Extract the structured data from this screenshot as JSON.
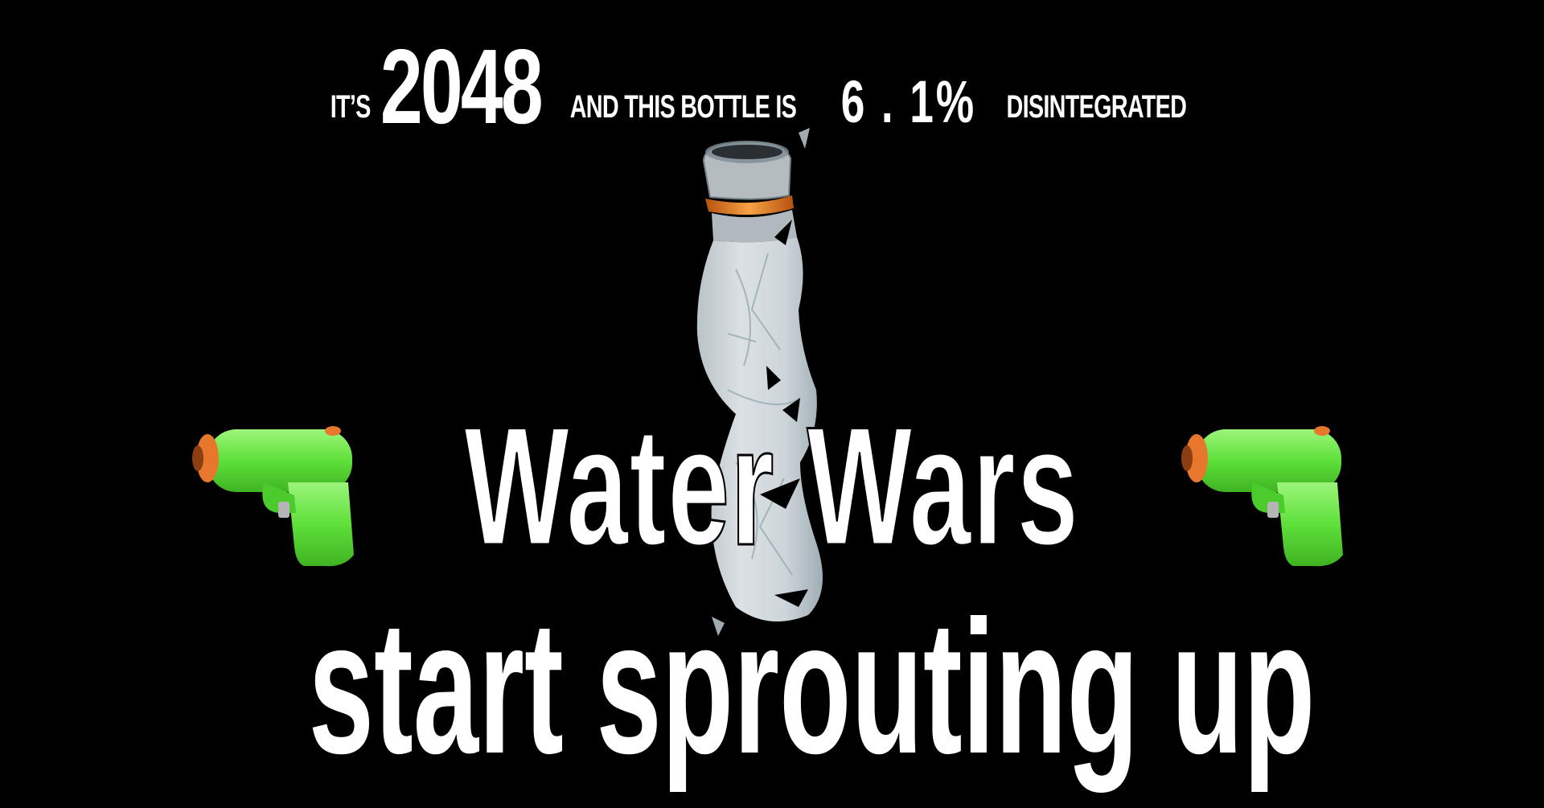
{
  "header": {
    "prefix": "IT’S",
    "year": "2048",
    "middle": "AND THIS BOTTLE IS",
    "percent": "6 . 1%",
    "suffix": "DISINTEGRATED"
  },
  "headline": {
    "line1": "Water Wars",
    "line2": "start sprouting up"
  },
  "icons": {
    "left": "water-pistol-icon",
    "right": "water-pistol-icon",
    "center": "plastic-bottle-icon"
  },
  "colors": {
    "background": "#000000",
    "text": "#ffffff",
    "pistol_green": "#5fe03a",
    "pistol_orange": "#e8772e",
    "bottle_cap": "#f0902a"
  }
}
